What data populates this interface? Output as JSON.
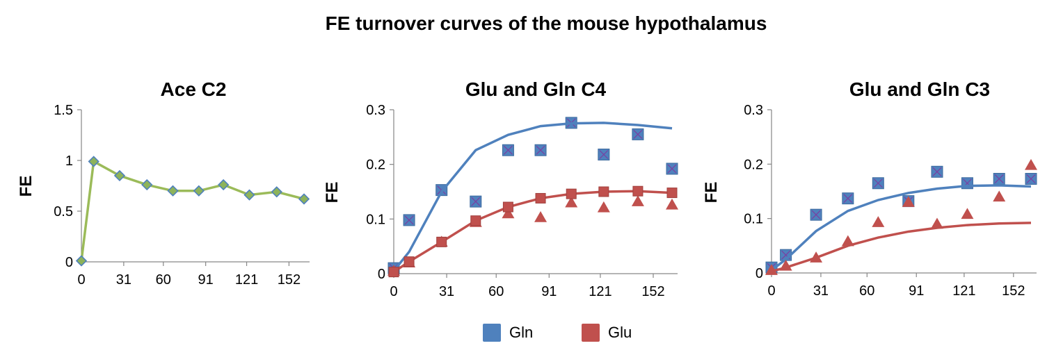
{
  "title": "FE turnover curves of the mouse hypothalamus",
  "colors": {
    "gln": "#4f81bd",
    "glu": "#c0504d",
    "ace": "#9bbb59",
    "ace_marker_fill": "#8db35a",
    "ace_marker_edge": "#4f81bd",
    "axis": "#868686",
    "cross": "#7b3fa0"
  },
  "legend": [
    {
      "name": "Gln",
      "color": "#4f81bd"
    },
    {
      "name": "Glu",
      "color": "#c0504d"
    }
  ],
  "chart_data": [
    {
      "type": "line",
      "title": "Ace C2",
      "ylabel": "FE",
      "xlabel": "",
      "ylim": [
        0,
        1.5
      ],
      "yticks": [
        "0",
        "0.5",
        "1",
        "1.5"
      ],
      "xticks": [
        "0",
        "31",
        "60",
        "91",
        "121",
        "152"
      ],
      "series": [
        {
          "name": "",
          "marker": "diamond",
          "color": "#9bbb59",
          "x": [
            0,
            9,
            28,
            48,
            67,
            86,
            104,
            123,
            143,
            163
          ],
          "y": [
            0.01,
            0.99,
            0.85,
            0.76,
            0.7,
            0.7,
            0.76,
            0.66,
            0.69,
            0.62
          ]
        }
      ]
    },
    {
      "type": "scatter",
      "title": "Glu and Gln C4",
      "ylabel": "FE",
      "xlabel": "",
      "ylim": [
        0,
        0.3
      ],
      "yticks": [
        "0",
        "0.1",
        "0.2",
        "0.3"
      ],
      "xticks": [
        "0",
        "31",
        "60",
        "91",
        "121",
        "152"
      ],
      "series": [
        {
          "name": "Gln",
          "marker": "square",
          "color": "#4f81bd",
          "x": [
            0,
            9,
            28,
            48,
            67,
            86,
            104,
            123,
            143,
            163
          ],
          "y": [
            0.01,
            0.098,
            0.153,
            0.132,
            0.226,
            0.226,
            0.276,
            0.218,
            0.255,
            0.192
          ]
        },
        {
          "name": "Gln fit",
          "marker": "line",
          "color": "#4f81bd",
          "x": [
            0,
            9,
            28,
            48,
            67,
            86,
            104,
            123,
            143,
            163
          ],
          "y": [
            0.005,
            0.04,
            0.15,
            0.226,
            0.254,
            0.27,
            0.275,
            0.276,
            0.272,
            0.266
          ]
        },
        {
          "name": "Glu",
          "marker": "triangle",
          "color": "#c0504d",
          "x": [
            0,
            9,
            28,
            48,
            67,
            86,
            104,
            123,
            143,
            163
          ],
          "y": [
            0.005,
            0.02,
            0.058,
            0.094,
            0.11,
            0.103,
            0.13,
            0.121,
            0.132,
            0.126
          ]
        },
        {
          "name": "Glu fit",
          "marker": "line-square",
          "color": "#c0504d",
          "x": [
            0,
            9,
            28,
            48,
            67,
            86,
            104,
            123,
            143,
            163
          ],
          "y": [
            0.003,
            0.022,
            0.058,
            0.097,
            0.122,
            0.138,
            0.146,
            0.15,
            0.151,
            0.148
          ]
        }
      ]
    },
    {
      "type": "scatter",
      "title": "Glu and Gln C3",
      "ylabel": "FE",
      "xlabel": "",
      "ylim": [
        0,
        0.3
      ],
      "yticks": [
        "0",
        "0.1",
        "0.2",
        "0.3"
      ],
      "xticks": [
        "0",
        "31",
        "60",
        "91",
        "121",
        "152"
      ],
      "series": [
        {
          "name": "Gln",
          "marker": "square",
          "color": "#4f81bd",
          "x": [
            0,
            9,
            28,
            48,
            67,
            86,
            104,
            123,
            143,
            163
          ],
          "y": [
            0.01,
            0.033,
            0.107,
            0.137,
            0.165,
            0.132,
            0.186,
            0.165,
            0.173,
            0.173
          ]
        },
        {
          "name": "Gln fit",
          "marker": "line",
          "color": "#4f81bd",
          "x": [
            0,
            9,
            28,
            48,
            67,
            86,
            104,
            123,
            143,
            163
          ],
          "y": [
            0.005,
            0.025,
            0.077,
            0.114,
            0.134,
            0.147,
            0.155,
            0.16,
            0.161,
            0.159
          ]
        },
        {
          "name": "Glu",
          "marker": "triangle",
          "color": "#c0504d",
          "x": [
            0,
            9,
            28,
            48,
            67,
            86,
            104,
            123,
            143,
            163
          ],
          "y": [
            0.005,
            0.013,
            0.028,
            0.058,
            0.093,
            0.13,
            0.09,
            0.108,
            0.14,
            0.198
          ]
        },
        {
          "name": "Glu fit",
          "marker": "line",
          "color": "#c0504d",
          "x": [
            0,
            9,
            28,
            48,
            67,
            86,
            104,
            123,
            143,
            163
          ],
          "y": [
            0.003,
            0.01,
            0.028,
            0.05,
            0.065,
            0.076,
            0.083,
            0.088,
            0.091,
            0.092
          ]
        }
      ]
    }
  ]
}
